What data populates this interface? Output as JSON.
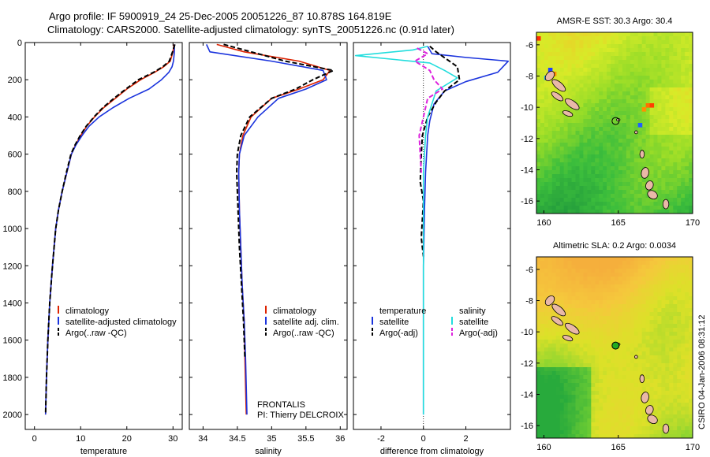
{
  "figure": {
    "title_line1": "Argo profile: IF 5900919_24 25-Dec-2005 20051226_87 10.878S 164.819E",
    "title_line2": "Climatology: CARS2000. Satellite-adjusted climatology: synTS_20051226.nc (0.91d later)",
    "side_stamp": "CSIRO 04-Jan-2006 08:31:12",
    "frontalis": "FRONTALIS",
    "pi": "PI: Thierry DELCROIX"
  },
  "colors": {
    "climatology": "#dd2200",
    "satellite": "#1a33dd",
    "argo": "#000000",
    "sat_salinity": "#22dddd",
    "argo_salinity": "#dd22dd",
    "land": "#e9b8a8"
  },
  "chart_data": [
    {
      "type": "line",
      "panel": "temperature",
      "title": "",
      "xlabel": "temperature",
      "ylabel": "",
      "xlim": [
        -2,
        32
      ],
      "ylim": [
        2080,
        0
      ],
      "xticks": [
        0,
        10,
        20,
        30
      ],
      "yticks": [
        0,
        200,
        400,
        600,
        800,
        1000,
        1200,
        1400,
        1600,
        1800,
        2000
      ],
      "legend": [
        "climatology",
        "satellite-adjusted climatology",
        "Argo(..raw -QC)"
      ],
      "series": [
        {
          "name": "climatology",
          "style": "solid",
          "color_key": "climatology",
          "x": [
            30.2,
            30.0,
            29.4,
            28.0,
            26.0,
            23.0,
            20.0,
            17.5,
            15.0,
            13.0,
            11.3,
            10.0,
            8.9,
            8.0,
            7.0,
            6.0,
            5.2,
            4.6,
            3.9,
            3.3,
            2.9,
            2.6,
            2.4
          ],
          "y": [
            10,
            50,
            100,
            130,
            160,
            200,
            250,
            300,
            350,
            400,
            450,
            500,
            550,
            600,
            700,
            800,
            900,
            1000,
            1200,
            1400,
            1600,
            1800,
            2000
          ]
        },
        {
          "name": "satellite-adjusted climatology",
          "style": "solid",
          "color_key": "satellite",
          "x": [
            30.3,
            30.3,
            30.1,
            29.8,
            29.1,
            27.5,
            24.8,
            20.5,
            17.0,
            14.0,
            11.8,
            10.3,
            9.0,
            8.0,
            7.0,
            6.0,
            5.2,
            4.6,
            3.9,
            3.3,
            2.9,
            2.6,
            2.4
          ],
          "y": [
            10,
            50,
            100,
            130,
            160,
            200,
            250,
            300,
            350,
            400,
            450,
            500,
            550,
            600,
            700,
            800,
            900,
            1000,
            1200,
            1400,
            1600,
            1800,
            2000
          ]
        },
        {
          "name": "Argo(..raw -QC)",
          "style": "dashed",
          "color_key": "argo",
          "x": [
            30.4,
            29.9,
            29.2,
            27.8,
            25.8,
            22.5,
            19.8,
            17.2,
            14.8,
            12.9,
            11.2,
            9.9,
            8.8,
            7.9,
            6.9,
            6.0,
            5.2,
            4.6,
            3.9,
            3.3,
            2.9,
            2.6,
            2.4
          ],
          "y": [
            10,
            50,
            100,
            130,
            160,
            200,
            250,
            300,
            350,
            400,
            450,
            500,
            550,
            600,
            700,
            800,
            900,
            1000,
            1200,
            1400,
            1600,
            1800,
            2000
          ]
        }
      ]
    },
    {
      "type": "line",
      "panel": "salinity",
      "title": "",
      "xlabel": "salinity",
      "ylabel": "",
      "xlim": [
        33.8,
        36.1
      ],
      "ylim": [
        2080,
        0
      ],
      "xticks": [
        34,
        34.5,
        35,
        35.5,
        36
      ],
      "yticks": [
        0,
        200,
        400,
        600,
        800,
        1000,
        1200,
        1400,
        1600,
        1800,
        2000
      ],
      "legend": [
        "climatology",
        "satellite adj. clim.",
        "Argo(..raw -QC)"
      ],
      "series": [
        {
          "name": "climatology",
          "style": "solid",
          "color_key": "climatology",
          "x": [
            34.2,
            34.6,
            35.4,
            35.85,
            35.75,
            35.4,
            35.0,
            34.7,
            34.58,
            34.53,
            34.52,
            34.53,
            34.55,
            34.57,
            34.6,
            34.61,
            34.63
          ],
          "y": [
            10,
            50,
            100,
            150,
            200,
            250,
            300,
            400,
            500,
            600,
            700,
            900,
            1100,
            1300,
            1500,
            1700,
            2000
          ]
        },
        {
          "name": "satellite adj. clim.",
          "style": "solid",
          "color_key": "satellite",
          "x": [
            34.05,
            34.1,
            35.0,
            35.75,
            35.8,
            35.5,
            35.1,
            34.8,
            34.6,
            34.53,
            34.52,
            34.53,
            34.55,
            34.57,
            34.6,
            34.62,
            34.64
          ],
          "y": [
            10,
            50,
            100,
            150,
            200,
            250,
            300,
            400,
            500,
            600,
            700,
            900,
            1100,
            1300,
            1500,
            1700,
            2000
          ]
        },
        {
          "name": "Argo(..raw -QC)",
          "style": "dashed",
          "color_key": "argo",
          "x": [
            34.3,
            34.7,
            35.2,
            35.9,
            35.6,
            35.35,
            35.0,
            34.68,
            34.55,
            34.5,
            34.49,
            34.51,
            34.53,
            34.56,
            34.59,
            34.61
          ],
          "y": [
            10,
            50,
            100,
            150,
            200,
            250,
            300,
            400,
            500,
            600,
            700,
            900,
            1100,
            1300,
            1500,
            1700
          ]
        }
      ]
    },
    {
      "type": "line",
      "panel": "difference",
      "title": "",
      "xlabel": "difference from climatology",
      "ylabel": "",
      "xlim": [
        -3.3,
        4.1
      ],
      "ylim": [
        2080,
        0
      ],
      "xticks": [
        -2,
        0,
        2
      ],
      "yticks": [
        0,
        200,
        400,
        600,
        800,
        1000,
        1200,
        1400,
        1600,
        1800,
        2000
      ],
      "legend": [
        "temperature",
        "satellite",
        "Argo(-adj)",
        "salinity",
        "satellite",
        "Argo(-adj)"
      ],
      "series": [
        {
          "name": "temperature satellite",
          "style": "solid",
          "color_key": "satellite",
          "x": [
            0.2,
            0.4,
            2.0,
            4.0,
            3.5,
            2.0,
            1.0,
            0.5,
            0.3,
            0.2,
            0.1,
            0.05,
            0.0,
            0.0,
            0.0
          ],
          "y": [
            20,
            60,
            80,
            100,
            160,
            210,
            260,
            330,
            420,
            500,
            700,
            900,
            1200,
            1600,
            2000
          ]
        },
        {
          "name": "temperature Argo(-adj)",
          "style": "dashed",
          "color_key": "argo",
          "x": [
            0.3,
            0.6,
            1.1,
            1.6,
            1.7,
            1.0,
            0.6,
            0.2,
            -0.05,
            -0.1,
            -0.15,
            0.0,
            -0.05,
            -0.1,
            0.0
          ],
          "y": [
            20,
            50,
            90,
            130,
            200,
            260,
            320,
            400,
            500,
            600,
            750,
            850,
            950,
            1050,
            1150
          ]
        },
        {
          "name": "salinity satellite",
          "style": "solid",
          "color_key": "sat_salinity",
          "x": [
            0.2,
            -0.5,
            -3.2,
            0.3,
            1.0,
            1.6,
            0.6,
            0.4,
            0.2,
            0.1,
            0.0,
            0.0,
            0.0
          ],
          "y": [
            20,
            40,
            70,
            110,
            150,
            190,
            260,
            330,
            400,
            500,
            700,
            1000,
            2000
          ]
        },
        {
          "name": "salinity Argo(-adj)",
          "style": "dashed",
          "color_key": "argo_salinity",
          "x": [
            -0.3,
            0.2,
            -0.4,
            0.3,
            0.5,
            0.9,
            0.2,
            0.0,
            -0.2,
            -0.15,
            -0.1
          ],
          "y": [
            30,
            60,
            100,
            150,
            200,
            250,
            300,
            400,
            500,
            600,
            700
          ]
        }
      ]
    },
    {
      "type": "heatmap",
      "panel": "sst_map",
      "title": "AMSR-E SST: 30.3 Argo: 30.4",
      "xlabel": "",
      "ylabel": "",
      "xlim": [
        159.5,
        170
      ],
      "ylim": [
        -16.8,
        -5.2
      ],
      "xticks": [
        160,
        165,
        170
      ],
      "yticks": [
        -6,
        -8,
        -10,
        -12,
        -14,
        -16
      ],
      "marker": {
        "lon": 164.819,
        "lat": -10.878,
        "filled": false
      }
    },
    {
      "type": "heatmap",
      "panel": "sla_map",
      "title": "Altimetric SLA: 0.2 Argo: 0.0034",
      "xlabel": "",
      "ylabel": "",
      "xlim": [
        159.5,
        170
      ],
      "ylim": [
        -16.8,
        -5.2
      ],
      "xticks": [
        160,
        165,
        170
      ],
      "yticks": [
        -6,
        -8,
        -10,
        -12,
        -14,
        -16
      ],
      "marker": {
        "lon": 164.819,
        "lat": -10.878,
        "filled": true
      }
    }
  ]
}
